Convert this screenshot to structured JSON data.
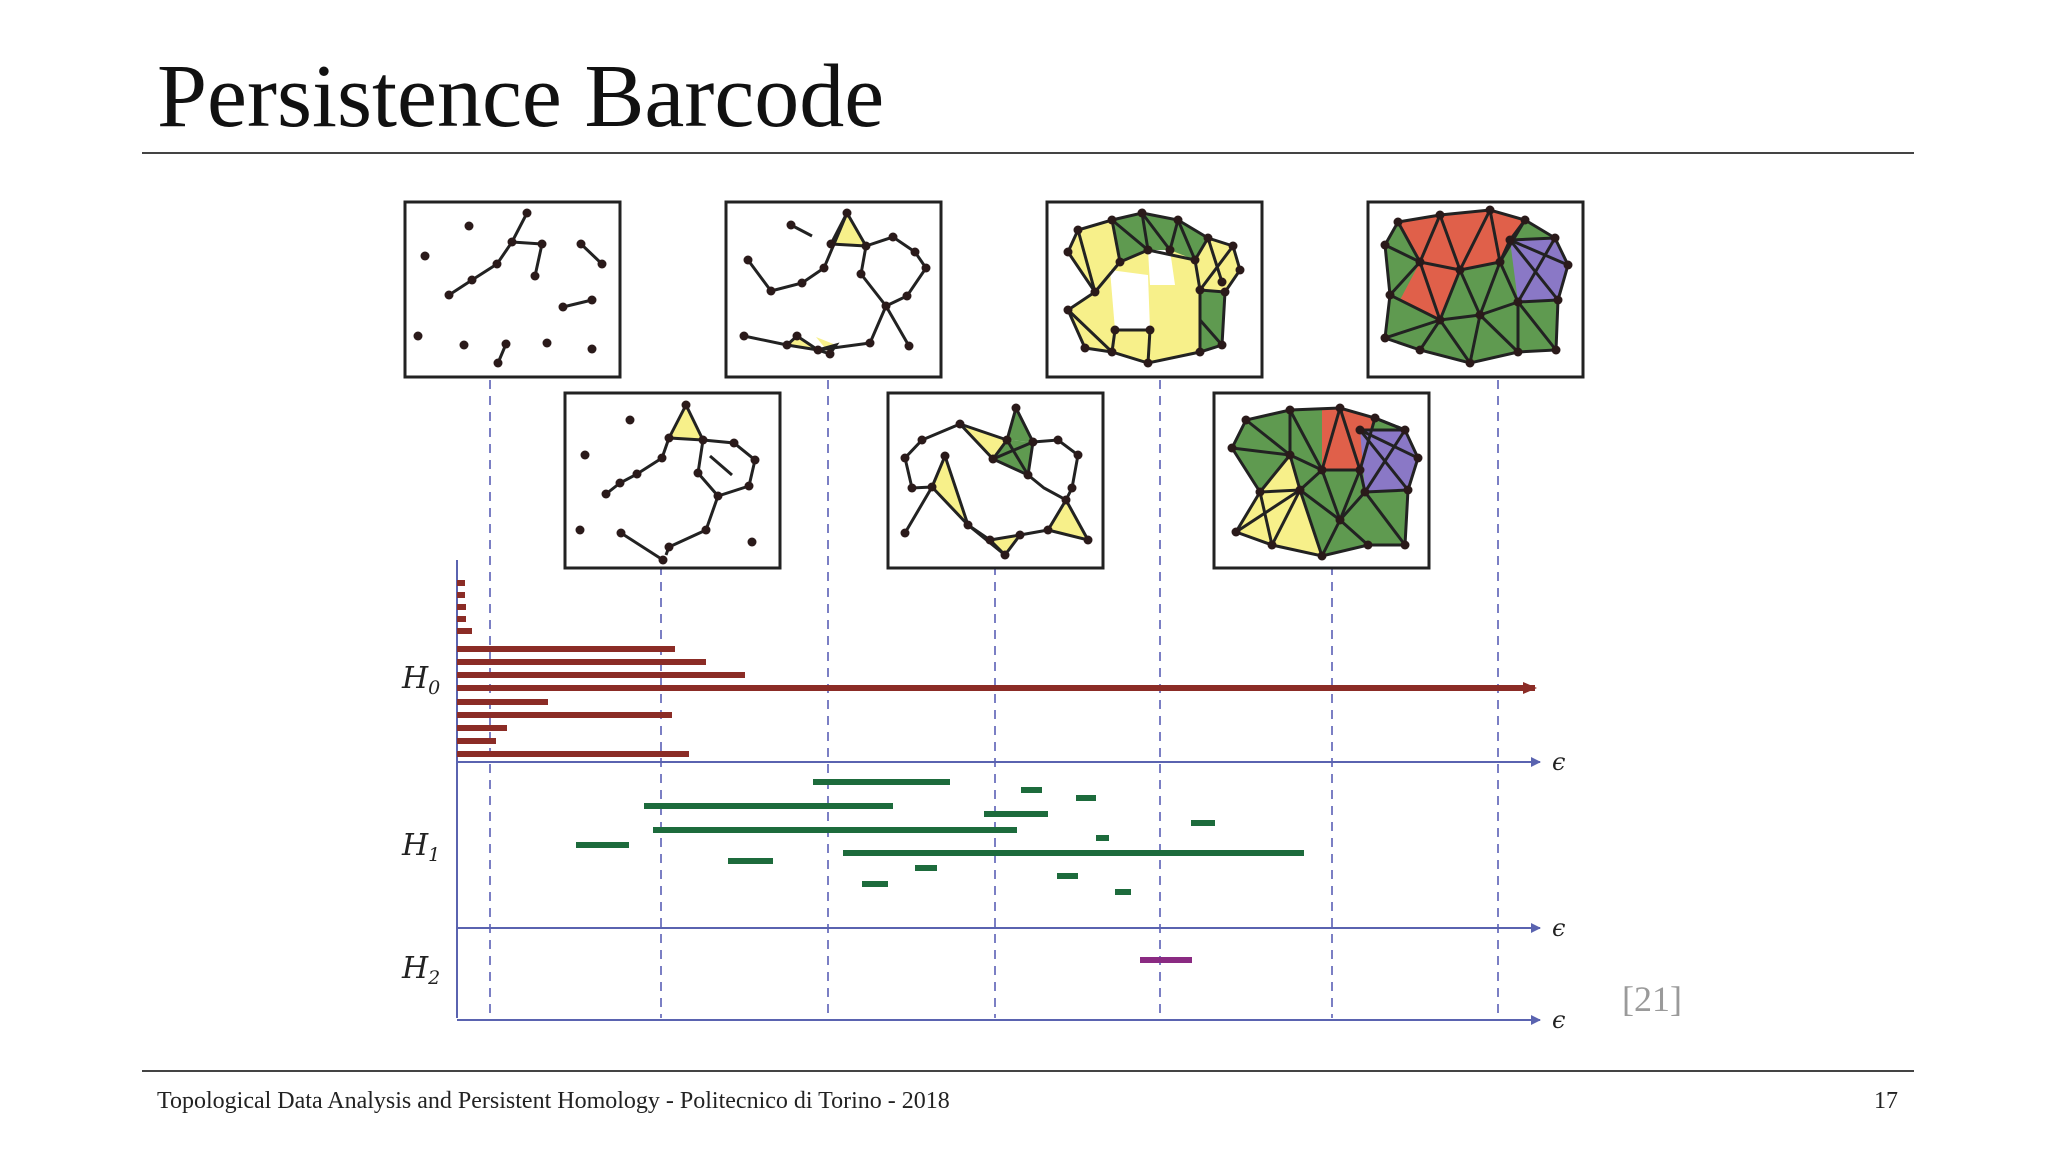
{
  "slide": {
    "title": "Persistence Barcode",
    "citation": "[21]",
    "footer": "Topological Data Analysis and Persistent Homology - Politecnico di Torino - 2018",
    "page_number": "17"
  },
  "figure": {
    "axes": [
      {
        "name": "H0",
        "label": "H",
        "subscript": "0",
        "axis_label": "ϵ"
      },
      {
        "name": "H1",
        "label": "H",
        "subscript": "1",
        "axis_label": "ϵ"
      },
      {
        "name": "H2",
        "label": "H",
        "subscript": "2",
        "axis_label": "ϵ"
      }
    ],
    "colors": {
      "h0_bar": "#8b2c26",
      "h1_bar": "#1d6b3c",
      "h2_bar": "#8a2a82",
      "dashed_line": "#7b7fc4",
      "axis": "#5a63b0",
      "yellow_face": "#f7f08a",
      "green_face": "#5f9a50",
      "red_face": "#e0604a",
      "purple_face": "#8a78c6"
    },
    "complex_panels": [
      {
        "name": "complex-1",
        "row": "top"
      },
      {
        "name": "complex-2",
        "row": "bottom"
      },
      {
        "name": "complex-3",
        "row": "top"
      },
      {
        "name": "complex-4",
        "row": "bottom"
      },
      {
        "name": "complex-5",
        "row": "top"
      },
      {
        "name": "complex-6",
        "row": "bottom"
      },
      {
        "name": "complex-7",
        "row": "top"
      }
    ]
  }
}
